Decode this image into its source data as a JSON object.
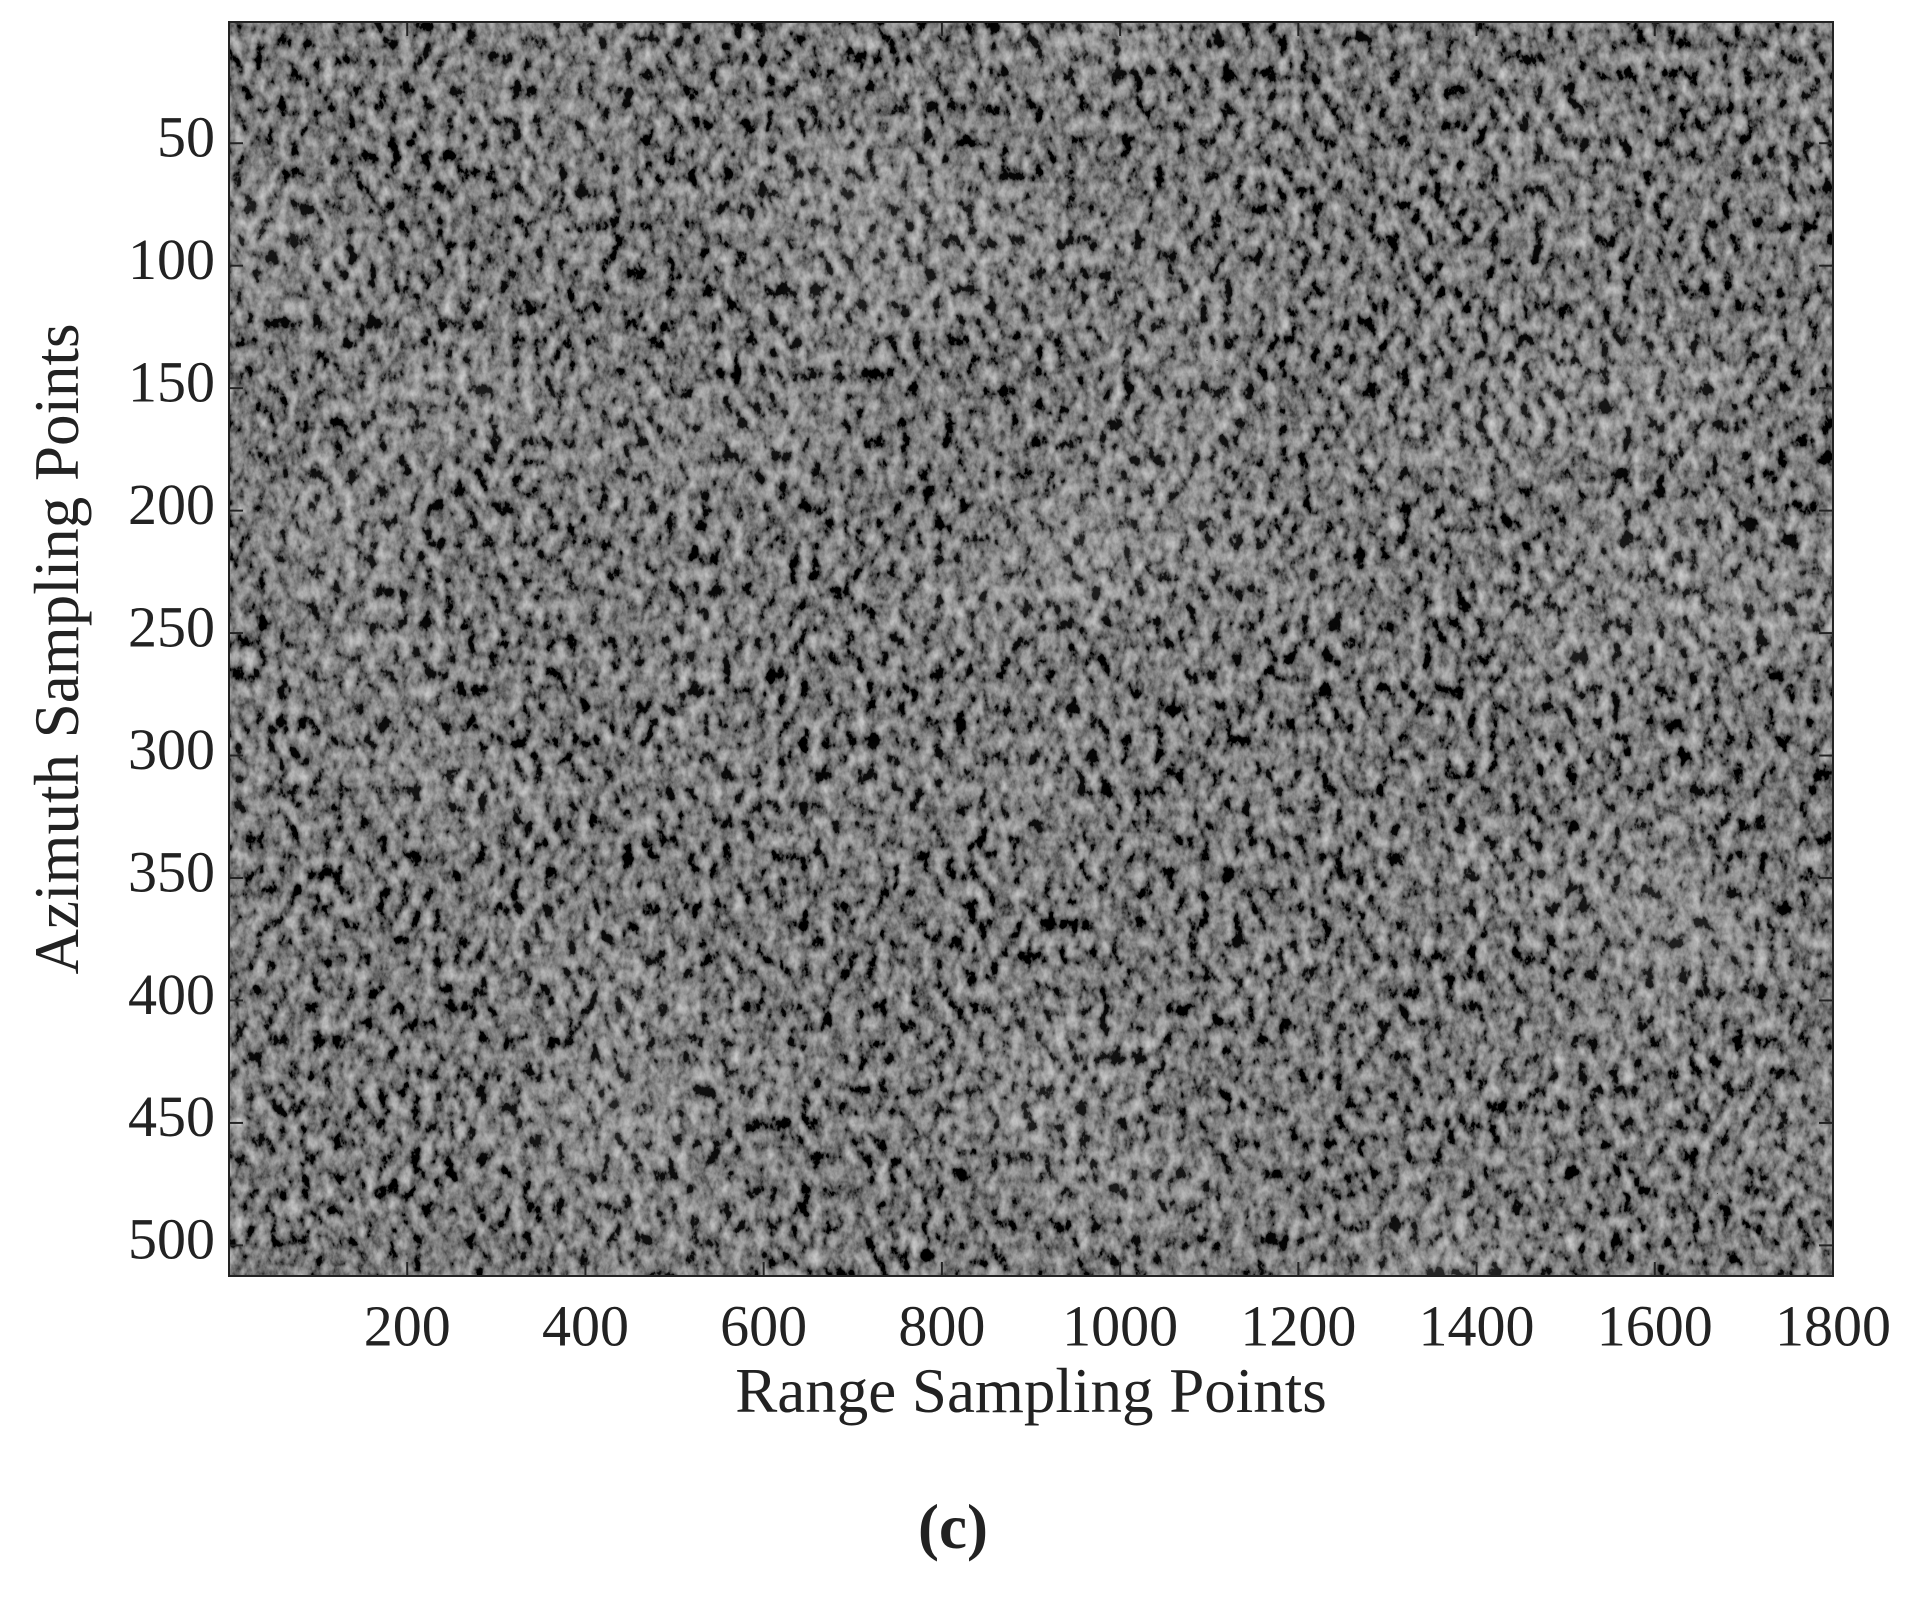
{
  "chart_data": {
    "type": "image",
    "xlabel": "Range Sampling Points",
    "ylabel": "Azimuth Sampling Points",
    "caption": "(c)",
    "xlim": [
      0,
      1800
    ],
    "xticks": [
      200,
      400,
      600,
      800,
      1000,
      1200,
      1400,
      1600,
      1800
    ],
    "ylim": [
      0.5,
      512.5
    ],
    "y_reversed": true,
    "yticks": [
      50,
      100,
      150,
      200,
      250,
      300,
      350,
      400,
      450,
      500
    ],
    "colormap": "gray"
  }
}
